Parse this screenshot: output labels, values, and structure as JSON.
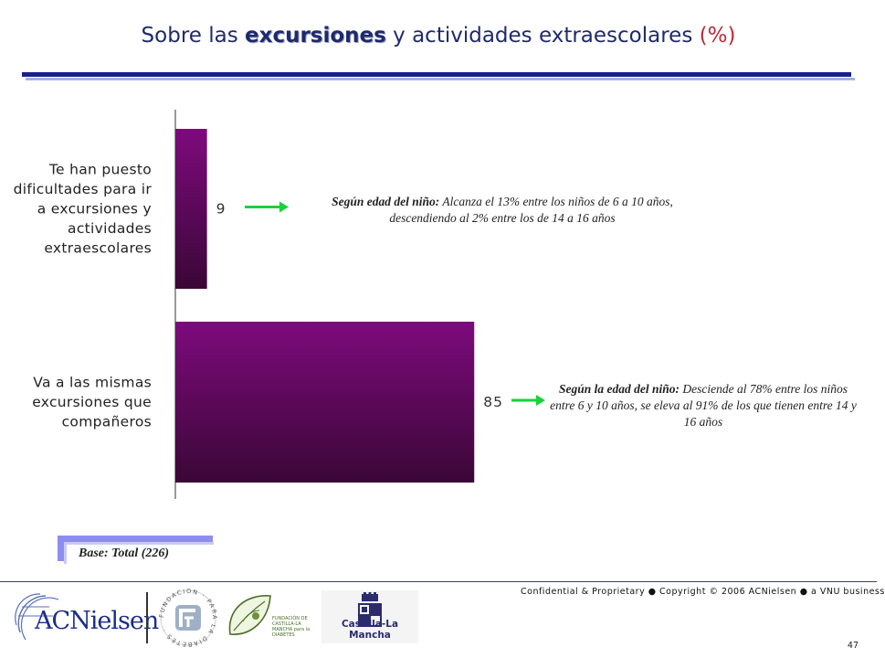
{
  "header": {
    "title_pre": "Sobre las ",
    "title_keyword": "excursiones",
    "title_post": " y actividades extraescolares ",
    "title_pct": "(%)"
  },
  "chart_data": {
    "type": "bar",
    "orientation": "horizontal",
    "categories": [
      [
        "Te han puesto",
        "dificultades para ir",
        "a excursiones y",
        "actividades",
        "extraescolares"
      ],
      [
        "Va a las mismas",
        "excursiones que",
        "compañeros"
      ]
    ],
    "values": [
      9,
      85
    ],
    "value_labels": [
      "9",
      "85"
    ],
    "xlim": [
      0,
      100
    ],
    "grid": false,
    "legend": "none",
    "bar_color_top": "#7d0a7d",
    "bar_color_bottom": "#3a0736",
    "arrow_color": "#19d23a"
  },
  "notes": [
    {
      "bold": "Según edad del niño:",
      "text": " Alcanza el 13% entre los niños de 6 a 10 años, descendiendo al 2% entre los de 14 a 16 años"
    },
    {
      "bold": "Según la edad del niño:",
      "text": " Desciende al 78% entre los niños entre 6 y 10 años, se eleva al 91% de los que tienen entre 14 y 16 años"
    }
  ],
  "base": "Base: Total (226)",
  "footer": {
    "confidential": "Confidential & Proprietary ● Copyright © 2006 ACNielsen ● a VNU business",
    "page_number": "47",
    "logos": {
      "acnielsen": "ACNielsen",
      "fundacion_ring": "FUNDACION · PARA LA DIABETES ·",
      "castilla_fundacion": "FUNDACIÓN DE CASTILLA-LA MANCHA para la DIABETES",
      "castilla_la_mancha": "Castilla-La Mancha"
    }
  }
}
